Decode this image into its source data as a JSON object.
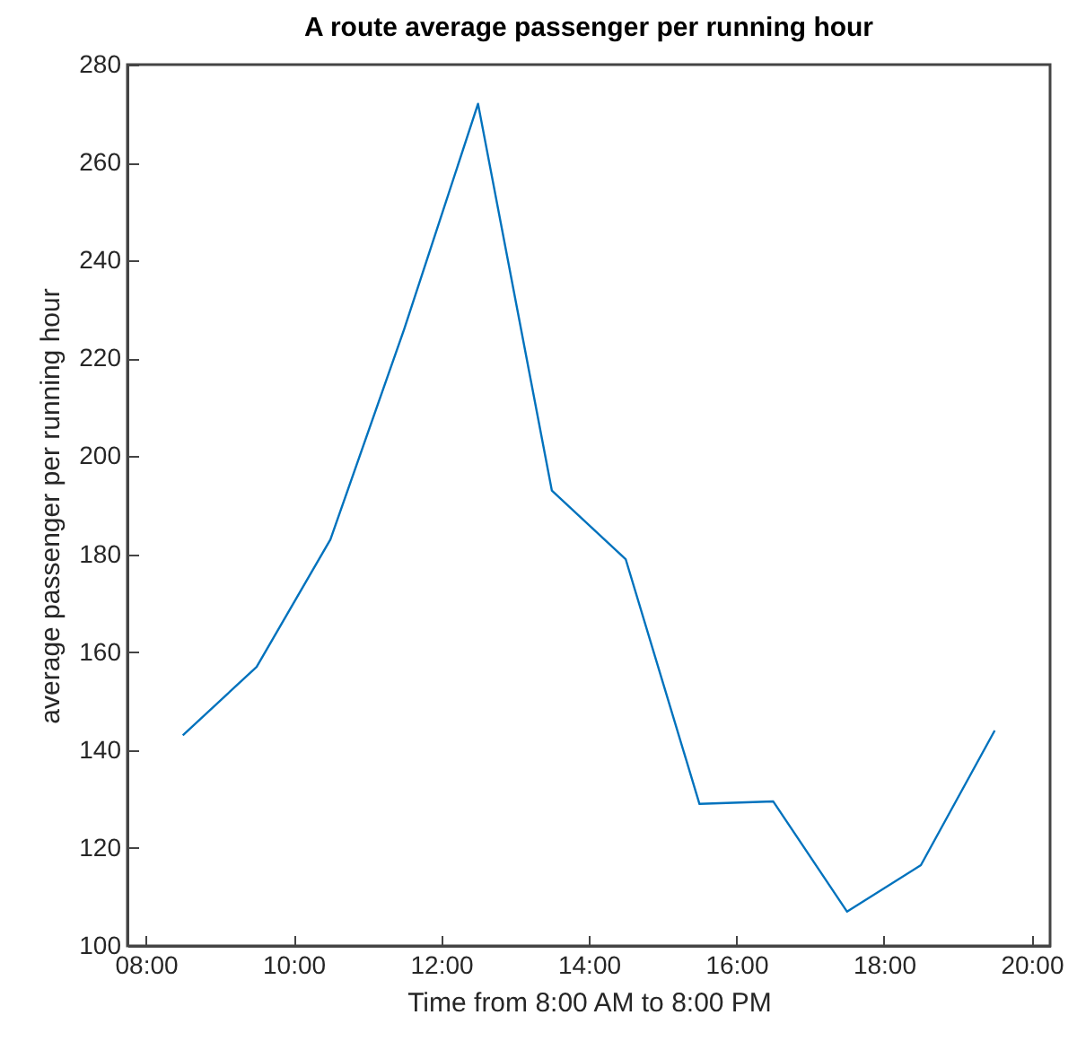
{
  "chart_data": {
    "type": "line",
    "title": "A route average passenger per running hour",
    "xlabel": "Time from 8:00 AM to 8:00 PM",
    "ylabel": "average passenger per running hour",
    "x": [
      8.5,
      9.5,
      10.5,
      11.5,
      12.5,
      13.5,
      14.5,
      15.5,
      16.5,
      17.5,
      18.5,
      19.5
    ],
    "series": [
      {
        "color": "#0072bd",
        "values": [
          143,
          157,
          183,
          226,
          272,
          193,
          179,
          129,
          129.5,
          107,
          116.5,
          144
        ]
      }
    ],
    "xlim": [
      7.75,
      20.25
    ],
    "xticks": [
      {
        "value": 8,
        "label": "08:00"
      },
      {
        "value": 10,
        "label": "10:00"
      },
      {
        "value": 12,
        "label": "12:00"
      },
      {
        "value": 14,
        "label": "14:00"
      },
      {
        "value": 16,
        "label": "16:00"
      },
      {
        "value": 18,
        "label": "18:00"
      },
      {
        "value": 20,
        "label": "20:00"
      }
    ],
    "ylim": [
      100,
      280
    ],
    "yticks": [
      100,
      120,
      140,
      160,
      180,
      200,
      220,
      240,
      260,
      280
    ],
    "grid": false,
    "marker": "none",
    "line_style": "solid"
  }
}
